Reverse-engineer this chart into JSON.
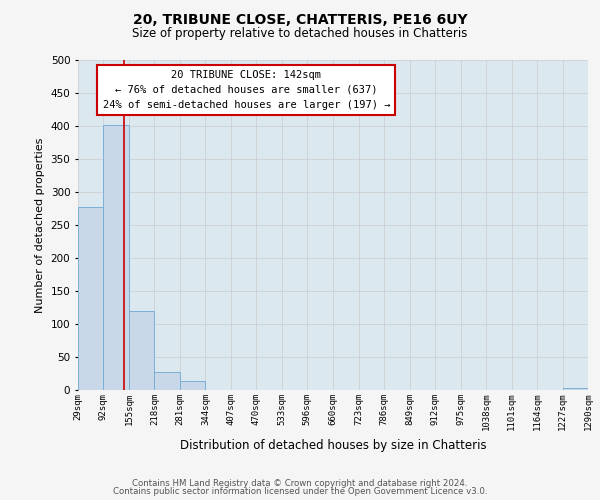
{
  "title": "20, TRIBUNE CLOSE, CHATTERIS, PE16 6UY",
  "subtitle": "Size of property relative to detached houses in Chatteris",
  "xlabel": "Distribution of detached houses by size in Chatteris",
  "ylabel": "Number of detached properties",
  "bar_edges": [
    29,
    92,
    155,
    218,
    281,
    344,
    407,
    470,
    533,
    596,
    660,
    723,
    786,
    849,
    912,
    975,
    1038,
    1101,
    1164,
    1227,
    1290
  ],
  "bar_heights": [
    277,
    401,
    120,
    27,
    14,
    0,
    0,
    0,
    0,
    0,
    0,
    0,
    0,
    0,
    0,
    0,
    0,
    0,
    0,
    3,
    0
  ],
  "bar_color": "#c8d8e8",
  "bar_edgecolor": "#7bafd4",
  "property_line_x": 142,
  "property_line_color": "#cc0000",
  "ylim": [
    0,
    500
  ],
  "yticks": [
    0,
    50,
    100,
    150,
    200,
    250,
    300,
    350,
    400,
    450,
    500
  ],
  "tick_labels": [
    "29sqm",
    "92sqm",
    "155sqm",
    "218sqm",
    "281sqm",
    "344sqm",
    "407sqm",
    "470sqm",
    "533sqm",
    "596sqm",
    "660sqm",
    "723sqm",
    "786sqm",
    "849sqm",
    "912sqm",
    "975sqm",
    "1038sqm",
    "1101sqm",
    "1164sqm",
    "1227sqm",
    "1290sqm"
  ],
  "annotation_title": "20 TRIBUNE CLOSE: 142sqm",
  "annotation_line1": "← 76% of detached houses are smaller (637)",
  "annotation_line2": "24% of semi-detached houses are larger (197) →",
  "annotation_box_color": "#ffffff",
  "annotation_box_edgecolor": "#cc0000",
  "grid_color": "#cccccc",
  "background_color": "#dce8f0",
  "fig_background": "#f5f5f5",
  "footer_line1": "Contains HM Land Registry data © Crown copyright and database right 2024.",
  "footer_line2": "Contains public sector information licensed under the Open Government Licence v3.0."
}
